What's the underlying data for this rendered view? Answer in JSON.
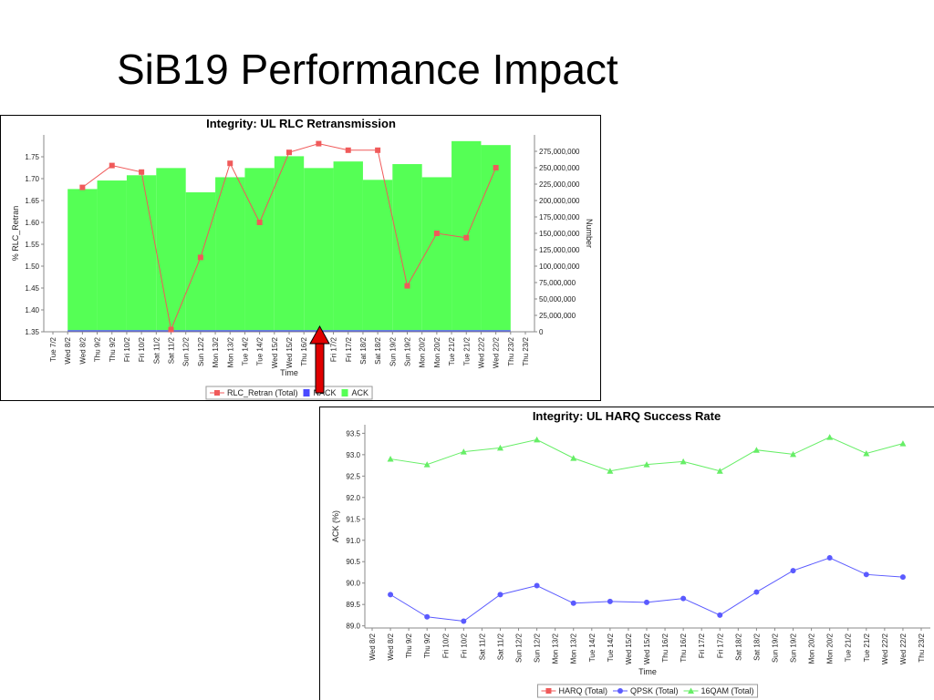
{
  "title": "SiB19 Performance Impact",
  "chart_data": [
    {
      "type": "bar",
      "title": "Integrity: UL RLC Retransmission",
      "xlabel": "Time",
      "ylabel": "% RLC_Retran",
      "y2label": "Number",
      "categories": [
        "Tue 7/2",
        "Wed 8/2",
        "Wed 8/2",
        "Thu 9/2",
        "Thu 9/2",
        "Fri 10/2",
        "Fri 10/2",
        "Sat 11/2",
        "Sat 11/2",
        "Sun 12/2",
        "Sun 12/2",
        "Mon 13/2",
        "Mon 13/2",
        "Tue 14/2",
        "Tue 14/2",
        "Wed 15/2",
        "Wed 15/2",
        "Thu 16/2",
        "Thu 16/2",
        "Fri 17/2",
        "Fri 17/2",
        "Sat 18/2",
        "Sat 18/2",
        "Sun 19/2",
        "Sun 19/2",
        "Mon 20/2",
        "Mon 20/2",
        "Tue 21/2",
        "Tue 21/2",
        "Wed 22/2",
        "Wed 22/2",
        "Thu 23/2",
        "Thu 23/2"
      ],
      "series": [
        {
          "name": "RLC_Retran (Total)",
          "type": "line",
          "marker": "square",
          "color": "#f05a5a",
          "values": [
            null,
            null,
            1.68,
            null,
            1.73,
            null,
            1.715,
            null,
            1.355,
            null,
            1.52,
            null,
            1.735,
            null,
            1.6,
            null,
            1.76,
            null,
            1.78,
            null,
            1.765,
            null,
            1.765,
            null,
            1.455,
            null,
            1.575,
            null,
            1.565,
            null,
            1.725,
            null,
            null
          ]
        },
        {
          "name": "NACK",
          "type": "bar",
          "axis": "y2",
          "color": "#4a4aff",
          "values": [
            null,
            null,
            2500000,
            null,
            2500000,
            null,
            2500000,
            null,
            2500000,
            null,
            2500000,
            null,
            2500000,
            null,
            2500000,
            null,
            2500000,
            null,
            2500000,
            null,
            2500000,
            null,
            2500000,
            null,
            2500000,
            null,
            2500000,
            null,
            2500000,
            null,
            2500000,
            null,
            null
          ]
        },
        {
          "name": "ACK",
          "type": "bar",
          "axis": "y2",
          "color": "#55ff55",
          "values": [
            null,
            null,
            215000000,
            null,
            228000000,
            null,
            236000000,
            null,
            247000000,
            null,
            210000000,
            null,
            233000000,
            null,
            247000000,
            null,
            265000000,
            null,
            247000000,
            null,
            257000000,
            null,
            229000000,
            null,
            253000000,
            null,
            233000000,
            null,
            288000000,
            null,
            282000000,
            null,
            null
          ]
        }
      ],
      "ylim": [
        1.35,
        1.8
      ],
      "yticks": [
        1.35,
        {
          "value": 1.4,
          "label": "1.40"
        },
        1.45,
        {
          "value": 1.5,
          "label": "1.50"
        },
        1.55,
        {
          "value": 1.6,
          "label": "1.60"
        },
        1.65,
        {
          "value": 1.7,
          "label": "1.70"
        },
        1.75
      ],
      "y2lim": [
        0,
        300000000
      ],
      "y2ticks": [
        0,
        {
          "value": 25000000,
          "label": "25,000,000"
        },
        {
          "value": 50000000,
          "label": "50,000,000"
        },
        {
          "value": 75000000,
          "label": "75,000,000"
        },
        {
          "value": 100000000,
          "label": "100,000,000"
        },
        {
          "value": 125000000,
          "label": "125,000,000"
        },
        {
          "value": 150000000,
          "label": "150,000,000"
        },
        {
          "value": 175000000,
          "label": "175,000,000"
        },
        {
          "value": 200000000,
          "label": "200,000,000"
        },
        {
          "value": 225000000,
          "label": "225,000,000"
        },
        {
          "value": 250000000,
          "label": "250,000,000"
        },
        {
          "value": 275000000,
          "label": "275,000,000"
        }
      ],
      "grid": false,
      "legend": "bottom"
    },
    {
      "type": "line",
      "title": "Integrity: UL HARQ Success Rate",
      "xlabel": "Time",
      "ylabel": "ACK (%)",
      "categories": [
        "Wed 8/2",
        "Wed 8/2",
        "Thu 9/2",
        "Thu 9/2",
        "Fri 10/2",
        "Fri 10/2",
        "Sat 11/2",
        "Sat 11/2",
        "Sun 12/2",
        "Sun 12/2",
        "Mon 13/2",
        "Mon 13/2",
        "Tue 14/2",
        "Tue 14/2",
        "Wed 15/2",
        "Wed 15/2",
        "Thu 16/2",
        "Thu 16/2",
        "Fri 17/2",
        "Fri 17/2",
        "Sat 18/2",
        "Sat 18/2",
        "Sun 19/2",
        "Sun 19/2",
        "Mon 20/2",
        "Mon 20/2",
        "Tue 21/2",
        "Tue 21/2",
        "Wed 22/2",
        "Wed 22/2",
        "Thu 23/2"
      ],
      "series": [
        {
          "name": "HARQ (Total)",
          "type": "line",
          "marker": "square",
          "color": "#f05a5a",
          "values": [
            null,
            null,
            null,
            null,
            null,
            null,
            null,
            null,
            null,
            null,
            null,
            null,
            null,
            null,
            null,
            null,
            null,
            null,
            null,
            null,
            null,
            null,
            null,
            null,
            null,
            null,
            null,
            null,
            null,
            null,
            null
          ]
        },
        {
          "name": "QPSK (Total)",
          "type": "line",
          "marker": "circle",
          "color": "#5a5aff",
          "values": [
            null,
            89.73,
            null,
            89.21,
            null,
            89.11,
            null,
            89.73,
            null,
            89.94,
            null,
            89.53,
            null,
            89.57,
            null,
            89.55,
            null,
            89.64,
            null,
            89.25,
            null,
            89.79,
            null,
            90.29,
            null,
            90.59,
            null,
            90.2,
            null,
            90.14,
            null
          ]
        },
        {
          "name": "16QAM (Total)",
          "type": "line",
          "marker": "triangle",
          "color": "#66ee66",
          "values": [
            null,
            92.9,
            null,
            92.77,
            null,
            93.07,
            null,
            93.16,
            null,
            93.35,
            null,
            92.92,
            null,
            92.62,
            null,
            92.77,
            null,
            92.84,
            null,
            92.62,
            null,
            93.11,
            null,
            93.01,
            null,
            93.41,
            null,
            93.03,
            null,
            93.26,
            null
          ]
        }
      ],
      "ylim": [
        88.95,
        93.7
      ],
      "yticks": [
        {
          "value": 89,
          "label": "89.0"
        },
        89.5,
        {
          "value": 90,
          "label": "90.0"
        },
        90.5,
        {
          "value": 91,
          "label": "91.0"
        },
        91.5,
        {
          "value": 92,
          "label": "92.0"
        },
        92.5,
        {
          "value": 93,
          "label": "93.0"
        },
        93.5
      ],
      "grid": false,
      "legend": "bottom"
    }
  ]
}
